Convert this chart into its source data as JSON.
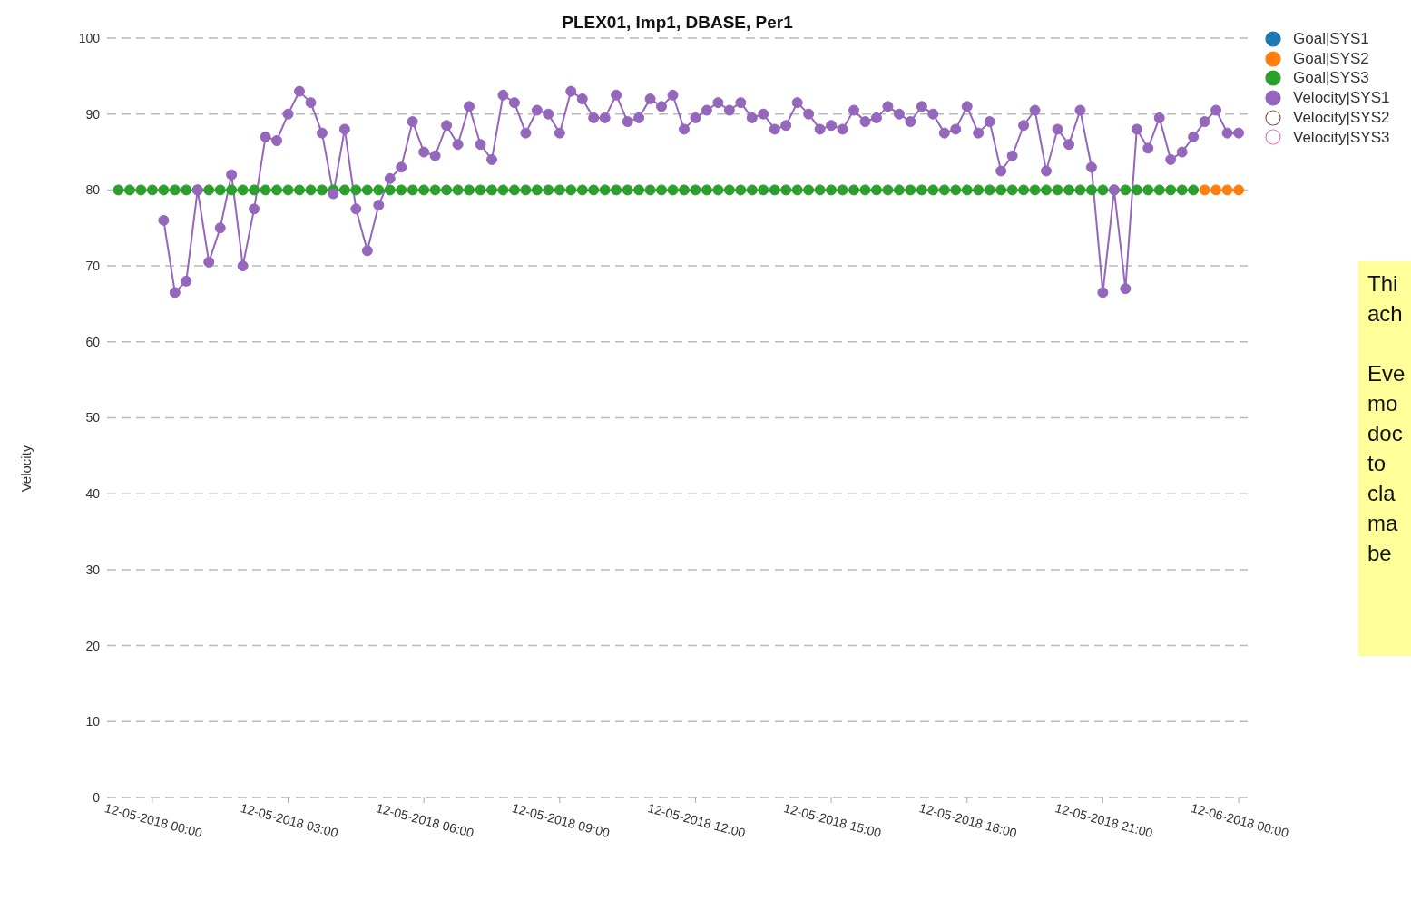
{
  "chart_data": {
    "type": "line",
    "title": "PLEX01, Imp1, DBASE, Per1",
    "ylabel": "Velocity",
    "xlim": [
      "2018-12-04T23:00",
      "2018-12-06T00:12"
    ],
    "xticks": [
      {
        "value": "2018-12-05T00:00",
        "label": "12-05-2018 00:00"
      },
      {
        "value": "2018-12-05T03:00",
        "label": "12-05-2018 03:00"
      },
      {
        "value": "2018-12-05T06:00",
        "label": "12-05-2018 06:00"
      },
      {
        "value": "2018-12-05T09:00",
        "label": "12-05-2018 09:00"
      },
      {
        "value": "2018-12-05T12:00",
        "label": "12-05-2018 12:00"
      },
      {
        "value": "2018-12-05T15:00",
        "label": "12-05-2018 15:00"
      },
      {
        "value": "2018-12-05T18:00",
        "label": "12-05-2018 18:00"
      },
      {
        "value": "2018-12-05T21:00",
        "label": "12-05-2018 21:00"
      },
      {
        "value": "2018-12-06T00:00",
        "label": "12-06-2018 00:00"
      }
    ],
    "ylim": [
      0,
      100
    ],
    "yticks": [
      0,
      10,
      20,
      30,
      40,
      50,
      60,
      70,
      80,
      90,
      100
    ],
    "grid": "y",
    "legend": "top right",
    "marker": "circle",
    "line_style": "solid",
    "annotations": [
      "Thi\nach\n\nEve\nmo\ndoc\nto\ncla\nma\nbe"
    ],
    "series": [
      {
        "name": "Goal|SYS1",
        "color": "#1f77b4"
      },
      {
        "name": "Goal|SYS2",
        "color": "#ff7f0e",
        "x": [
          "2018-12-05T23:15",
          "2018-12-05T23:30",
          "2018-12-05T23:45",
          "2018-12-06T00:00"
        ],
        "values": [
          80,
          80,
          80,
          80
        ]
      },
      {
        "name": "Goal|SYS3",
        "color": "#2ca02c",
        "x": [
          "2018-12-04T23:15",
          "2018-12-04T23:30",
          "2018-12-04T23:45",
          "2018-12-05T00:00",
          "2018-12-05T00:15",
          "2018-12-05T00:30",
          "2018-12-05T00:45",
          "2018-12-05T01:00",
          "2018-12-05T01:15",
          "2018-12-05T01:30",
          "2018-12-05T01:45",
          "2018-12-05T02:00",
          "2018-12-05T02:15",
          "2018-12-05T02:30",
          "2018-12-05T02:45",
          "2018-12-05T03:00",
          "2018-12-05T03:15",
          "2018-12-05T03:30",
          "2018-12-05T03:45",
          "2018-12-05T04:00",
          "2018-12-05T04:15",
          "2018-12-05T04:30",
          "2018-12-05T04:45",
          "2018-12-05T05:00",
          "2018-12-05T05:15",
          "2018-12-05T05:30",
          "2018-12-05T05:45",
          "2018-12-05T06:00",
          "2018-12-05T06:15",
          "2018-12-05T06:30",
          "2018-12-05T06:45",
          "2018-12-05T07:00",
          "2018-12-05T07:15",
          "2018-12-05T07:30",
          "2018-12-05T07:45",
          "2018-12-05T08:00",
          "2018-12-05T08:15",
          "2018-12-05T08:30",
          "2018-12-05T08:45",
          "2018-12-05T09:00",
          "2018-12-05T09:15",
          "2018-12-05T09:30",
          "2018-12-05T09:45",
          "2018-12-05T10:00",
          "2018-12-05T10:15",
          "2018-12-05T10:30",
          "2018-12-05T10:45",
          "2018-12-05T11:00",
          "2018-12-05T11:15",
          "2018-12-05T11:30",
          "2018-12-05T11:45",
          "2018-12-05T12:00",
          "2018-12-05T12:15",
          "2018-12-05T12:30",
          "2018-12-05T12:45",
          "2018-12-05T13:00",
          "2018-12-05T13:15",
          "2018-12-05T13:30",
          "2018-12-05T13:45",
          "2018-12-05T14:00",
          "2018-12-05T14:15",
          "2018-12-05T14:30",
          "2018-12-05T14:45",
          "2018-12-05T15:00",
          "2018-12-05T15:15",
          "2018-12-05T15:30",
          "2018-12-05T15:45",
          "2018-12-05T16:00",
          "2018-12-05T16:15",
          "2018-12-05T16:30",
          "2018-12-05T16:45",
          "2018-12-05T17:00",
          "2018-12-05T17:15",
          "2018-12-05T17:30",
          "2018-12-05T17:45",
          "2018-12-05T18:00",
          "2018-12-05T18:15",
          "2018-12-05T18:30",
          "2018-12-05T18:45",
          "2018-12-05T19:00",
          "2018-12-05T19:15",
          "2018-12-05T19:30",
          "2018-12-05T19:45",
          "2018-12-05T20:00",
          "2018-12-05T20:15",
          "2018-12-05T20:30",
          "2018-12-05T20:45",
          "2018-12-05T21:00",
          "2018-12-05T21:15",
          "2018-12-05T21:30",
          "2018-12-05T21:45",
          "2018-12-05T22:00",
          "2018-12-05T22:15",
          "2018-12-05T22:30",
          "2018-12-05T22:45",
          "2018-12-05T23:00"
        ],
        "values": [
          80,
          80,
          80,
          80,
          80,
          80,
          80,
          80,
          80,
          80,
          80,
          80,
          80,
          80,
          80,
          80,
          80,
          80,
          80,
          80,
          80,
          80,
          80,
          80,
          80,
          80,
          80,
          80,
          80,
          80,
          80,
          80,
          80,
          80,
          80,
          80,
          80,
          80,
          80,
          80,
          80,
          80,
          80,
          80,
          80,
          80,
          80,
          80,
          80,
          80,
          80,
          80,
          80,
          80,
          80,
          80,
          80,
          80,
          80,
          80,
          80,
          80,
          80,
          80,
          80,
          80,
          80,
          80,
          80,
          80,
          80,
          80,
          80,
          80,
          80,
          80,
          80,
          80,
          80,
          80,
          80,
          80,
          80,
          80,
          80,
          80,
          80,
          80,
          80,
          80,
          80,
          80,
          80,
          80,
          80,
          80
        ]
      },
      {
        "name": "Velocity|SYS1",
        "color": "#9467bd",
        "x": [
          "2018-12-05T00:15",
          "2018-12-05T00:30",
          "2018-12-05T00:45",
          "2018-12-05T01:00",
          "2018-12-05T01:15",
          "2018-12-05T01:30",
          "2018-12-05T01:45",
          "2018-12-05T02:00",
          "2018-12-05T02:15",
          "2018-12-05T02:30",
          "2018-12-05T02:45",
          "2018-12-05T03:00",
          "2018-12-05T03:15",
          "2018-12-05T03:30",
          "2018-12-05T03:45",
          "2018-12-05T04:00",
          "2018-12-05T04:15",
          "2018-12-05T04:30",
          "2018-12-05T04:45",
          "2018-12-05T05:00",
          "2018-12-05T05:15",
          "2018-12-05T05:30",
          "2018-12-05T05:45",
          "2018-12-05T06:00",
          "2018-12-05T06:15",
          "2018-12-05T06:30",
          "2018-12-05T06:45",
          "2018-12-05T07:00",
          "2018-12-05T07:15",
          "2018-12-05T07:30",
          "2018-12-05T07:45",
          "2018-12-05T08:00",
          "2018-12-05T08:15",
          "2018-12-05T08:30",
          "2018-12-05T08:45",
          "2018-12-05T09:00",
          "2018-12-05T09:15",
          "2018-12-05T09:30",
          "2018-12-05T09:45",
          "2018-12-05T10:00",
          "2018-12-05T10:15",
          "2018-12-05T10:30",
          "2018-12-05T10:45",
          "2018-12-05T11:00",
          "2018-12-05T11:15",
          "2018-12-05T11:30",
          "2018-12-05T11:45",
          "2018-12-05T12:00",
          "2018-12-05T12:15",
          "2018-12-05T12:30",
          "2018-12-05T12:45",
          "2018-12-05T13:00",
          "2018-12-05T13:15",
          "2018-12-05T13:30",
          "2018-12-05T13:45",
          "2018-12-05T14:00",
          "2018-12-05T14:15",
          "2018-12-05T14:30",
          "2018-12-05T14:45",
          "2018-12-05T15:00",
          "2018-12-05T15:15",
          "2018-12-05T15:30",
          "2018-12-05T15:45",
          "2018-12-05T16:00",
          "2018-12-05T16:15",
          "2018-12-05T16:30",
          "2018-12-05T16:45",
          "2018-12-05T17:00",
          "2018-12-05T17:15",
          "2018-12-05T17:30",
          "2018-12-05T17:45",
          "2018-12-05T18:00",
          "2018-12-05T18:15",
          "2018-12-05T18:30",
          "2018-12-05T18:45",
          "2018-12-05T19:00",
          "2018-12-05T19:15",
          "2018-12-05T19:30",
          "2018-12-05T19:45",
          "2018-12-05T20:00",
          "2018-12-05T20:15",
          "2018-12-05T20:30",
          "2018-12-05T20:45",
          "2018-12-05T21:00",
          "2018-12-05T21:15",
          "2018-12-05T21:30",
          "2018-12-05T21:45",
          "2018-12-05T22:00",
          "2018-12-05T22:15",
          "2018-12-05T22:30",
          "2018-12-05T22:45",
          "2018-12-05T23:00",
          "2018-12-05T23:15",
          "2018-12-05T23:30",
          "2018-12-05T23:45",
          "2018-12-06T00:00"
        ],
        "values": [
          76,
          66.5,
          68,
          80,
          70.5,
          75,
          82,
          70,
          77.5,
          87,
          86.5,
          90,
          93,
          91.5,
          87.5,
          79.5,
          88,
          77.5,
          72,
          78,
          81.5,
          83,
          89,
          85,
          84.5,
          88.5,
          86,
          91,
          86,
          84,
          92.5,
          91.5,
          87.5,
          90.5,
          90,
          87.5,
          93,
          92,
          89.5,
          89.5,
          92.5,
          89,
          89.5,
          92,
          91,
          92.5,
          88,
          89.5,
          90.5,
          91.5,
          90.5,
          91.5,
          89.5,
          90,
          88,
          88.5,
          91.5,
          90,
          88,
          88.5,
          88,
          90.5,
          89,
          89.5,
          91,
          90,
          89,
          91,
          90,
          87.5,
          88,
          91,
          87.5,
          89,
          82.5,
          84.5,
          88.5,
          90.5,
          82.5,
          88,
          86,
          90.5,
          83,
          66.5,
          80,
          67,
          88,
          85.5,
          89.5,
          84,
          85,
          87,
          89,
          90.5,
          87.5,
          87.5
        ]
      },
      {
        "name": "Velocity|SYS2",
        "color": "#8c564b",
        "marker": "none"
      },
      {
        "name": "Velocity|SYS3",
        "color": "#e377c2",
        "marker": "none"
      }
    ]
  }
}
